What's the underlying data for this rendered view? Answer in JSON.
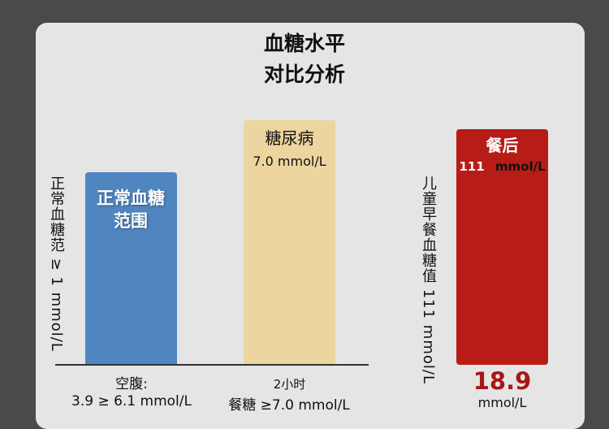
{
  "chart_data": {
    "type": "bar",
    "title": [
      "血糖水平",
      "对比分析"
    ],
    "categories": [
      "正常血糖范围",
      "糖尿病",
      "餐后"
    ],
    "bars": [
      {
        "label": "正常血糖范围",
        "value_text": "",
        "color": "#4f86c0",
        "side_label": "正常血糖范 ≥ 1 mmol/L",
        "bottom_label": [
          "空腹:",
          "3.9 ≥ 6.1 mmol/L"
        ]
      },
      {
        "label": "糖尿病",
        "value_text": "7.0 mmol/L",
        "color": "#ecd59e",
        "bottom_label": [
          "2小时",
          "餐糖 ≥7.0 mmol/L"
        ]
      },
      {
        "label": "餐后",
        "value_num": "111",
        "value_unit": "mmol/L",
        "color": "#b71c17",
        "side_label": "儿童早餐血糖值 111 mmol/L",
        "big_value": "18.9",
        "big_unit": "mmol/L"
      }
    ]
  }
}
